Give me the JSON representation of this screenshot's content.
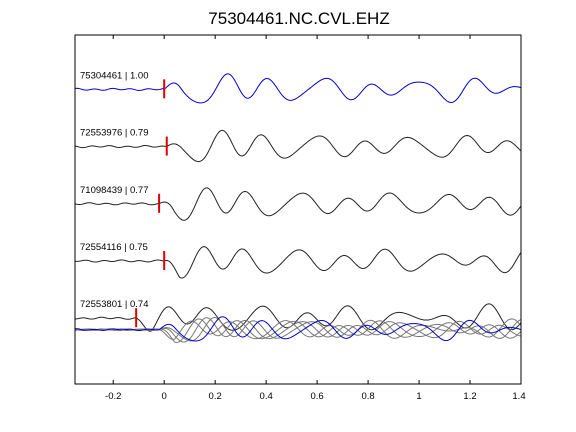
{
  "chart_data": {
    "type": "line",
    "title": "75304461.NC.CVL.EHZ",
    "xlabel": "",
    "ylabel": "",
    "xlim": [
      -0.35,
      1.4
    ],
    "xticks": [
      -0.2,
      0,
      0.2,
      0.4,
      0.6,
      0.8,
      1,
      1.2,
      1.4
    ],
    "xtick_labels": [
      "-0.2",
      "0",
      "0.2",
      "0.4",
      "0.6",
      "0.8",
      "1",
      "1.2",
      "1.4"
    ],
    "grid": false,
    "legend": "none",
    "traces": [
      {
        "label": "75304461 | 1.00",
        "event_id": "75304461",
        "correlation": 1.0,
        "pick_time": 0.0,
        "color": "#0000cc",
        "seed": 1
      },
      {
        "label": "72553976 | 0.79",
        "event_id": "72553976",
        "correlation": 0.79,
        "pick_time": 0.01,
        "color": "#222222",
        "seed": 2
      },
      {
        "label": "71098439 | 0.77",
        "event_id": "71098439",
        "correlation": 0.77,
        "pick_time": -0.02,
        "color": "#222222",
        "seed": 3
      },
      {
        "label": "72554116 | 0.75",
        "event_id": "72554116",
        "correlation": 0.75,
        "pick_time": 0.0,
        "color": "#222222",
        "seed": 4
      },
      {
        "label": "72553801 | 0.74",
        "event_id": "72553801",
        "correlation": 0.74,
        "pick_time": -0.11,
        "color": "#222222",
        "seed": 5
      }
    ],
    "stack": {
      "reference_color": "#0000cc",
      "overlay_color": "#777777"
    },
    "pick_marker_color": "#dd0000"
  }
}
